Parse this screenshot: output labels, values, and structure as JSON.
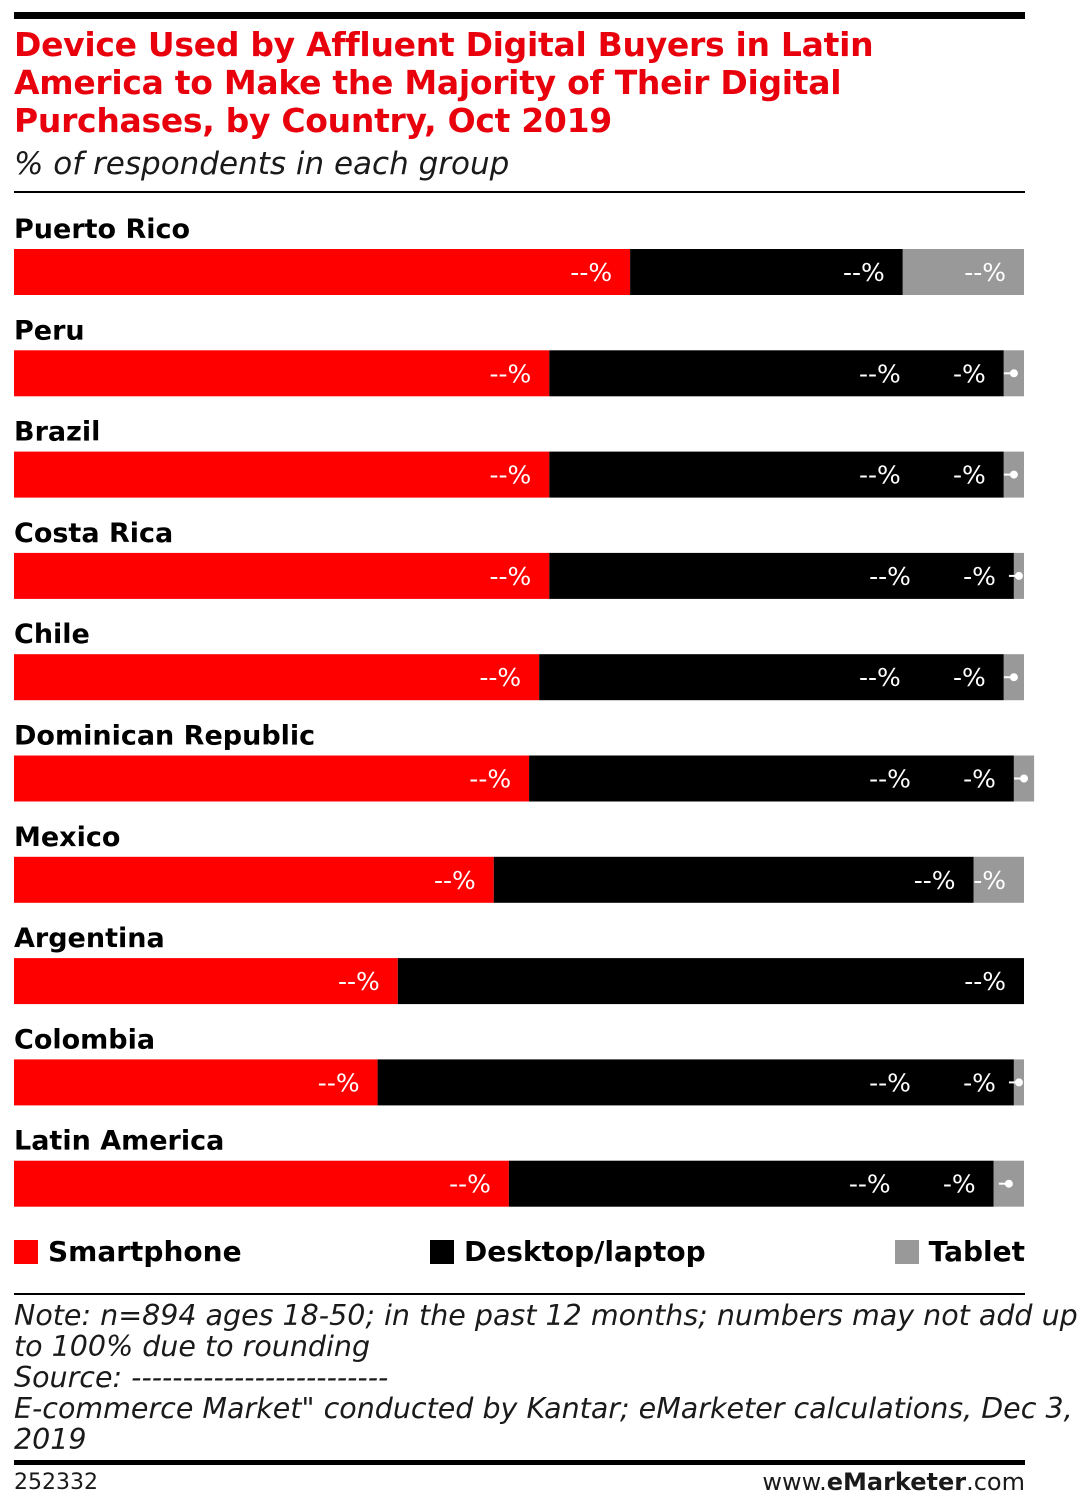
{
  "header": {
    "title_lines": [
      "Device Used by Affluent Digital Buyers in Latin",
      "America to Make the Majority of Their Digital",
      "Purchases, by Country, Oct 2019"
    ],
    "subtitle": "% of respondents in each group"
  },
  "colors": {
    "smartphone": "#ff0000",
    "desktop": "#000000",
    "tablet": "#999999",
    "title": "#e8000d"
  },
  "chart_data": {
    "type": "bar",
    "orientation": "horizontal",
    "stacked": true,
    "xlim": [
      0,
      100
    ],
    "categories": [
      "Puerto Rico",
      "Peru",
      "Brazil",
      "Costa Rica",
      "Chile",
      "Dominican Republic",
      "Mexico",
      "Argentina",
      "Colombia",
      "Latin America"
    ],
    "series": [
      {
        "name": "Smartphone",
        "values": [
          61,
          53,
          53,
          53,
          52,
          51,
          47.5,
          38,
          36,
          49
        ],
        "data_labels": [
          "--%",
          "--%",
          "--%",
          "--%",
          "--%",
          "--%",
          "--%",
          "--%",
          "--%",
          "--%"
        ]
      },
      {
        "name": "Desktop/laptop",
        "values": [
          27,
          45,
          45,
          46,
          46,
          48,
          47.5,
          62,
          63,
          48
        ],
        "data_labels": [
          "--%",
          "--%",
          "--%",
          "--%",
          "--%",
          "--%",
          "--%",
          "--%",
          "--%",
          "--%"
        ],
        "small_labels": [
          "--%",
          "-%",
          "-%",
          "-%",
          "-%",
          "-%",
          "--%",
          "",
          "-%",
          "-%"
        ]
      },
      {
        "name": "Tablet",
        "values": [
          12,
          2,
          2,
          1,
          2,
          2,
          5,
          0,
          1,
          3
        ],
        "data_labels": [
          "--%",
          "",
          "",
          "",
          "",
          "",
          "-%",
          "",
          "",
          ""
        ]
      }
    ],
    "legend": {
      "position": "bottom",
      "items": [
        "Smartphone",
        "Desktop/laptop",
        "Tablet"
      ]
    },
    "grid": false
  },
  "note": {
    "lines": [
      "Note: n=894 ages 18-50; in the past 12 months; numbers may not add up",
      "to 100% due to rounding",
      "Source: -------------------------",
      "E-commerce Market\" conducted by Kantar; eMarketer calculations, Dec 3,",
      "2019"
    ]
  },
  "footer": {
    "chart_id": "252332",
    "brand_prefix": "www.",
    "brand_name": "eMarketer",
    "brand_suffix": ".com"
  }
}
